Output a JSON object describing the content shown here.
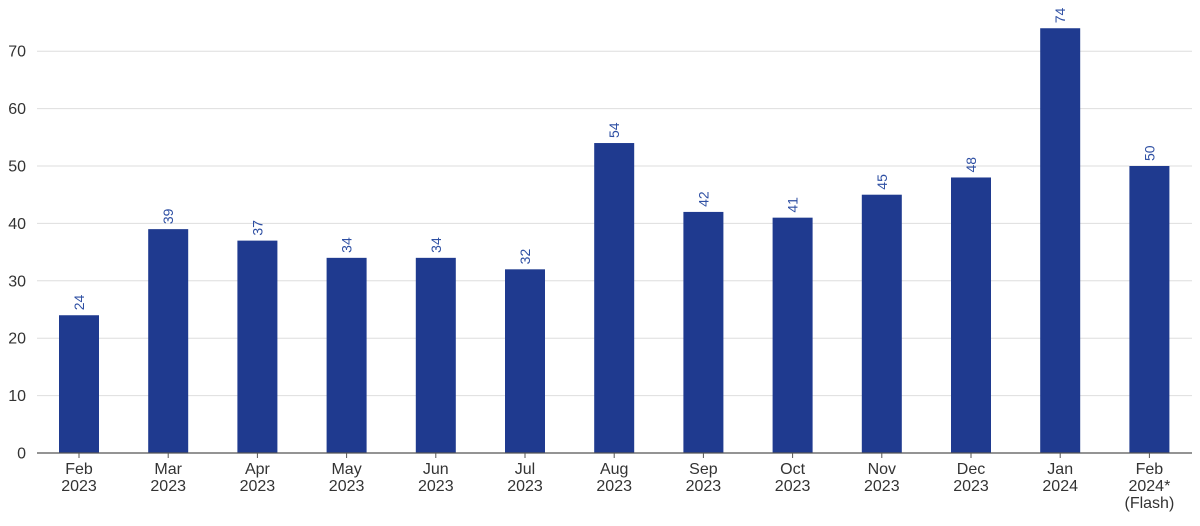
{
  "chart_data": {
    "type": "bar",
    "categories": [
      [
        "Feb",
        "2023"
      ],
      [
        "Mar",
        "2023"
      ],
      [
        "Apr",
        "2023"
      ],
      [
        "May",
        "2023"
      ],
      [
        "Jun",
        "2023"
      ],
      [
        "Jul",
        "2023"
      ],
      [
        "Aug",
        "2023"
      ],
      [
        "Sep",
        "2023"
      ],
      [
        "Oct",
        "2023"
      ],
      [
        "Nov",
        "2023"
      ],
      [
        "Dec",
        "2023"
      ],
      [
        "Jan",
        "2024"
      ],
      [
        "Feb",
        "2024*",
        "(Flash)"
      ]
    ],
    "values": [
      24,
      39,
      37,
      34,
      34,
      32,
      54,
      42,
      41,
      45,
      48,
      74,
      50
    ],
    "data_labels": [
      "24",
      "39",
      "37",
      "34",
      "34",
      "32",
      "54",
      "42",
      "41",
      "45",
      "48",
      "74",
      "50"
    ],
    "yticks": [
      0,
      10,
      20,
      30,
      40,
      50,
      60,
      70
    ],
    "ylim": [
      0,
      75
    ],
    "grid": true,
    "bar_color": "#1f3a8f",
    "label_color": "#2e4fa3"
  }
}
